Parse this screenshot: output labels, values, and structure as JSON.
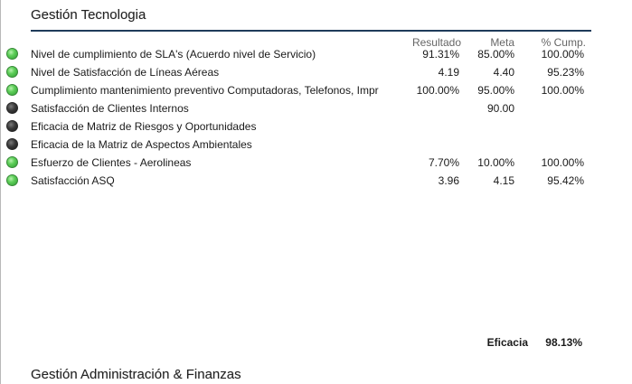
{
  "section1": {
    "title": "Gestión Tecnologia",
    "headers": {
      "resultado": "Resultado",
      "meta": "Meta",
      "cumplimiento": "% Cump."
    },
    "rows": [
      {
        "status": "green",
        "name": "Nivel de cumplimiento de SLA's (Acuerdo nivel de Servicio)",
        "resultado": "91.31%",
        "meta": "85.00%",
        "cumplimiento": "100.00%"
      },
      {
        "status": "green",
        "name": "Nivel de Satisfacción de Líneas Aéreas",
        "resultado": "4.19",
        "meta": "4.40",
        "cumplimiento": "95.23%"
      },
      {
        "status": "green",
        "name": "Cumplimiento mantenimiento preventivo Computadoras, Telefonos, Impr",
        "resultado": "100.00%",
        "meta": "95.00%",
        "cumplimiento": "100.00%"
      },
      {
        "status": "gray",
        "name": "Satisfacción de Clientes Internos",
        "resultado": "",
        "meta": "90.00",
        "cumplimiento": ""
      },
      {
        "status": "gray",
        "name": "Eficacia de Matriz de Riesgos y Oportunidades",
        "resultado": "",
        "meta": "",
        "cumplimiento": ""
      },
      {
        "status": "gray",
        "name": "Eficacia de la Matriz de Aspectos Ambientales",
        "resultado": "",
        "meta": "",
        "cumplimiento": ""
      },
      {
        "status": "green",
        "name": "Esfuerzo de Clientes - Aerolineas",
        "resultado": "7.70%",
        "meta": "10.00%",
        "cumplimiento": "100.00%"
      },
      {
        "status": "green",
        "name": "Satisfacción ASQ",
        "resultado": "3.96",
        "meta": "4.15",
        "cumplimiento": "95.42%"
      }
    ],
    "eficacia_label": "Eficacia",
    "eficacia_value": "98.13%"
  },
  "section2": {
    "title": "Gestión Administración & Finanzas"
  },
  "colors": {
    "title_rule": "#1f3b5a",
    "status_green": "#4cbf4a",
    "status_gray": "#333333"
  }
}
